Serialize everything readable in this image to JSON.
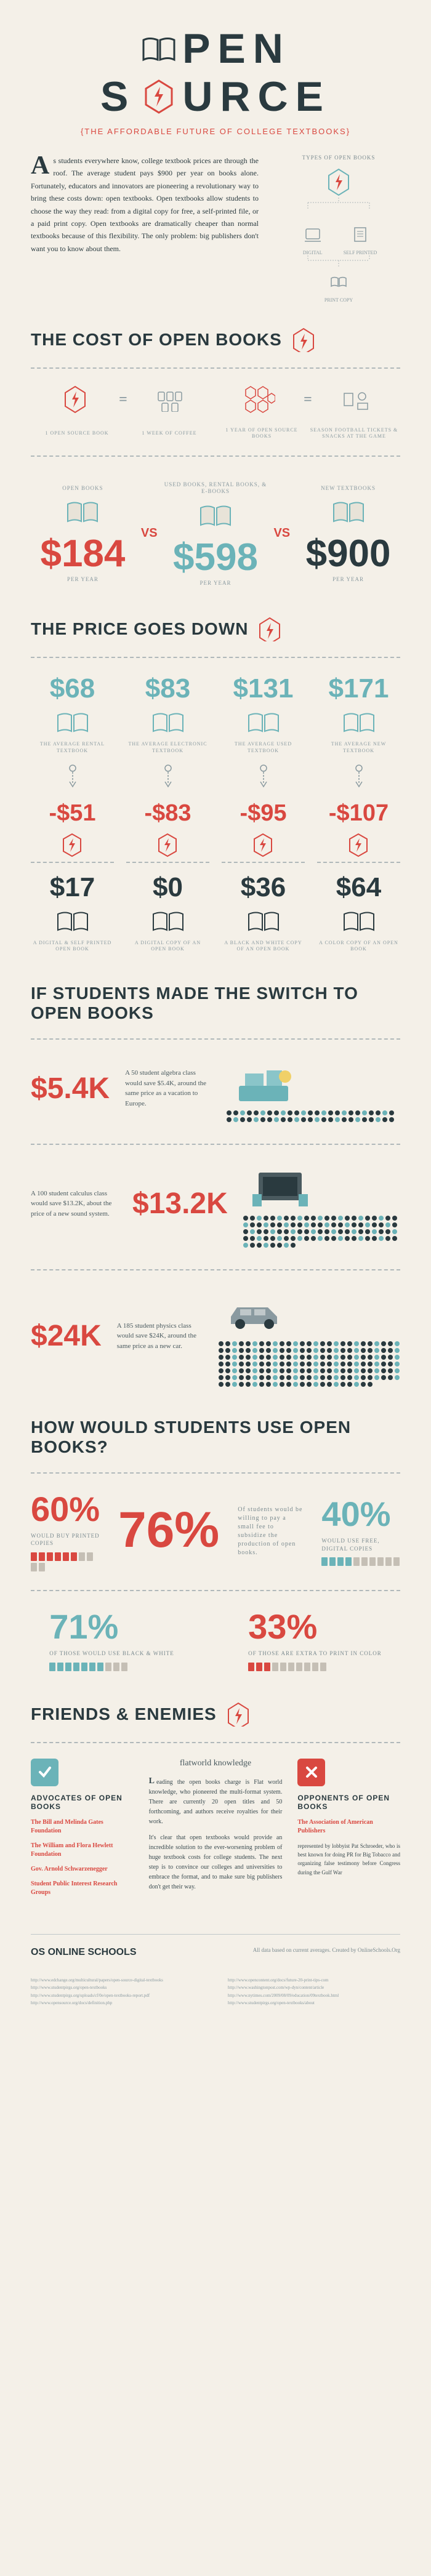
{
  "title": {
    "word1_pre": "",
    "word1_post": "PEN",
    "word2_pre": "S",
    "word2_post": "URCE",
    "sub": "{THE AFFORDABLE FUTURE OF COLLEGE TEXTBOOKS}"
  },
  "intro": {
    "dropcap": "A",
    "body": "s students everywhere know, college textbook prices are through the roof. The average student pays $900 per year on books alone. Fortunately, educators and innovators are pioneering a revolutionary way to bring these costs down: open textbooks. Open textbooks allow students to choose the way they read: from a digital copy for free, a self-printed file, or a paid print copy. Open textbooks are dramatically cheaper than normal textbooks because of this flexibility. The only problem: big publishers don't want you to know about them.",
    "diagram_title": "TYPES OF OPEN BOOKS",
    "nodes": [
      "DIGITAL",
      "SELF PRINTED",
      "PRINT COPY"
    ]
  },
  "cost": {
    "title": "THE COST OF OPEN BOOKS",
    "eq": [
      {
        "label": "1 OPEN SOURCE BOOK"
      },
      {
        "label": "1 WEEK OF COFFEE"
      },
      {
        "label": "1 YEAR OF OPEN SOURCE BOOKS"
      },
      {
        "label": "SEASON FOOTBALL TICKETS & SNACKS AT THE GAME"
      }
    ],
    "compare": [
      {
        "label": "OPEN BOOKS",
        "price": "$184",
        "per": "PER YEAR",
        "color": "red"
      },
      {
        "label": "USED BOOKS, RENTAL BOOKS, & E-BOOKS",
        "price": "$598",
        "per": "PER YEAR",
        "color": "teal"
      },
      {
        "label": "NEW TEXTBOOKS",
        "price": "$900",
        "per": "PER YEAR",
        "color": "dark"
      }
    ],
    "vs": "VS"
  },
  "pricedown": {
    "title": "THE PRICE GOES DOWN",
    "cols": [
      {
        "price": "$68",
        "label1": "THE AVERAGE RENTAL TEXTBOOK",
        "delta": "-$51",
        "final": "$17",
        "label2": "A DIGITAL & SELF PRINTED OPEN BOOK"
      },
      {
        "price": "$83",
        "label1": "THE AVERAGE ELECTRONIC TEXTBOOK",
        "delta": "-$83",
        "final": "$0",
        "label2": "A DIGITAL COPY OF AN OPEN BOOK"
      },
      {
        "price": "$131",
        "label1": "THE AVERAGE USED TEXTBOOK",
        "delta": "-$95",
        "final": "$36",
        "label2": "A BLACK AND WHITE COPY OF AN OPEN BOOK"
      },
      {
        "price": "$171",
        "label1": "THE AVERAGE NEW TEXTBOOK",
        "delta": "-$107",
        "final": "$64",
        "label2": "A COLOR COPY OF AN OPEN BOOK"
      }
    ]
  },
  "switch": {
    "title": "IF STUDENTS MADE THE SWITCH TO OPEN BOOKS",
    "rows": [
      {
        "price": "$5.4K",
        "desc": "A 50 student algebra class would save $5.4K, around the same price as a vacation to Europe.",
        "count": 50
      },
      {
        "price": "$13.2K",
        "desc": "A 100 student calculus class would save $13.2K, about the price of a new sound system.",
        "count": 100
      },
      {
        "price": "$24K",
        "desc": "A 185 student physics class would save $24K, around the same price as a new car.",
        "count": 185
      }
    ]
  },
  "usage": {
    "title": "HOW WOULD STUDENTS USE OPEN BOOKS?",
    "center": {
      "pct": "76%",
      "label": "Of students would be willing to pay a small fee to subsidize the production of open books."
    },
    "items": [
      {
        "pct": "60%",
        "label": "WOULD BUY PRINTED COPIES",
        "color": "red",
        "fill_color": "#d94840",
        "empty_color": "#c5bfb5",
        "filled": 6,
        "total": 10
      },
      {
        "pct": "40%",
        "label": "WOULD USE FREE, DIGITAL COPIES",
        "color": "teal",
        "fill_color": "#6bb3b8",
        "empty_color": "#c5bfb5",
        "filled": 4,
        "total": 10
      },
      {
        "pct": "71%",
        "label": "OF THOSE WOULD USE BLACK & WHITE",
        "color": "teal",
        "fill_color": "#6bb3b8",
        "empty_color": "#c5bfb5",
        "filled": 7,
        "total": 10
      },
      {
        "pct": "33%",
        "label": "OF THOSE ARE EXTRA TO PRINT IN COLOR",
        "color": "red",
        "fill_color": "#d94840",
        "empty_color": "#c5bfb5",
        "filled": 3,
        "total": 10
      }
    ]
  },
  "fe": {
    "title": "FRIENDS & ENEMIES",
    "advocates": {
      "heading": "ADVOCATES OF OPEN BOOKS",
      "items": [
        "The Bill and Melinda Gates Foundation",
        "The William and Flora Hewlett Foundation",
        "Gov. Arnold Schwarzenegger",
        "Student Public Interest Research Groups"
      ]
    },
    "mid": {
      "logo": "flatworld knowledge",
      "p1": "Leading the open books charge is Flat world knowledge, who pioneered the multi-format system. There are currently 20 open titles and 50 forthcoming, and authors receive royalties for their work.",
      "p2": "It's clear that open textbooks would provide an incredible solution to the ever-worsening problem of huge textbook costs for college students. The next step is to convince our colleges and universities to embrace the format, and to make sure big publishers don't get their way."
    },
    "opponents": {
      "heading": "OPPONENTS OF OPEN BOOKS",
      "item": "The Association of American Publishers",
      "desc": "represented by lobbyist Pat Schroeder, who is best known for doing PR for Big Tobacco and organizing false testimony before Congress during the Gulf War"
    }
  },
  "footer": {
    "logo": "OS ONLINE SCHOOLS",
    "credit": "All data based on current averages. Created by OnlineSchools.Org",
    "links1": [
      "http://www.edchange.org/multicultural/papers/open-source-digital-textbooks",
      "http://www.studentpirgs.org/open-textbooks",
      "http://www.studentpirgs.org/uploads/cf/0e/open-textbooks-report.pdf",
      "http://www.opensource.org/docs/definition.php"
    ],
    "links2": [
      "http://www.opencontent.org/docs/future-20-print-tips-com",
      "http://www.washingtonpost.com/wp-dyn/content/article",
      "http://www.nytimes.com/2009/08/09/education/09textbook.html",
      "http://www.studentpirgs.org/open-textbooks/about"
    ]
  },
  "colors": {
    "red": "#d94840",
    "teal": "#6bb3b8",
    "dark": "#2a3a3f",
    "gray": "#8a9aa0",
    "bg": "#f4f0e8"
  }
}
